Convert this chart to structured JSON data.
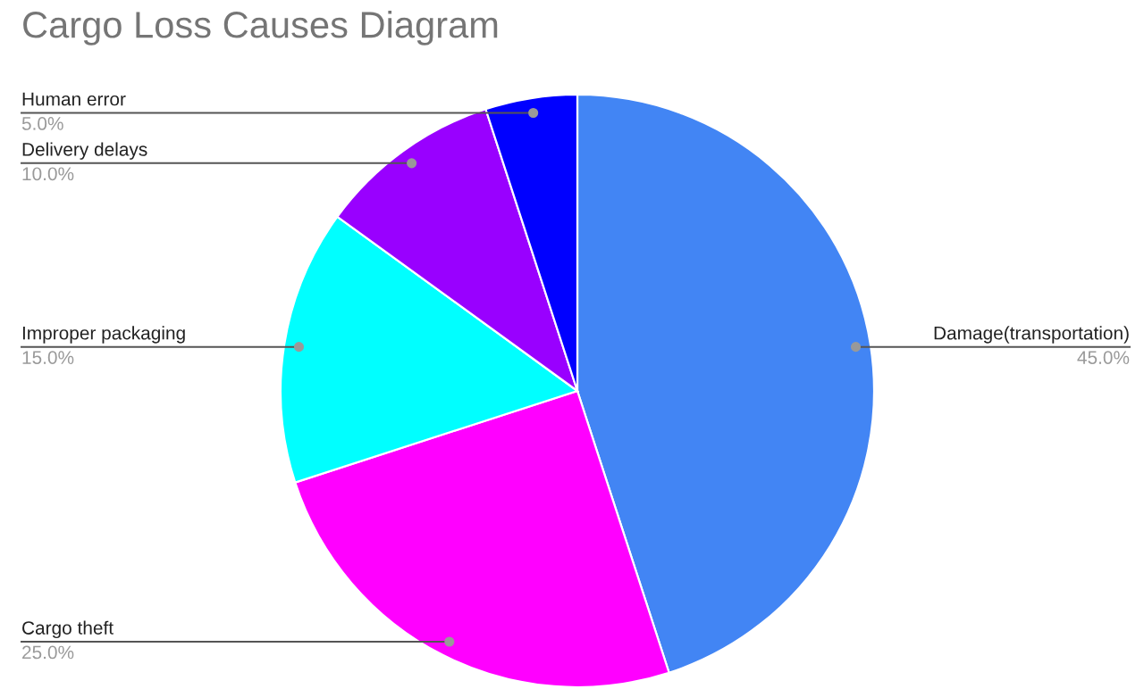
{
  "chart_data": {
    "type": "pie",
    "title": "Cargo Loss Causes Diagram",
    "categories": [
      "Damage(transportation)",
      "Cargo theft",
      "Improper packaging",
      "Delivery delays",
      "Human error"
    ],
    "values": [
      45,
      25,
      15,
      10,
      5
    ],
    "colors": [
      "#4285f4",
      "#ff00ff",
      "#00ffff",
      "#9900ff",
      "#0000ff"
    ],
    "value_labels": [
      "45.0%",
      "25.0%",
      "15.0%",
      "10.0%",
      "5.0%"
    ],
    "legend": false
  }
}
